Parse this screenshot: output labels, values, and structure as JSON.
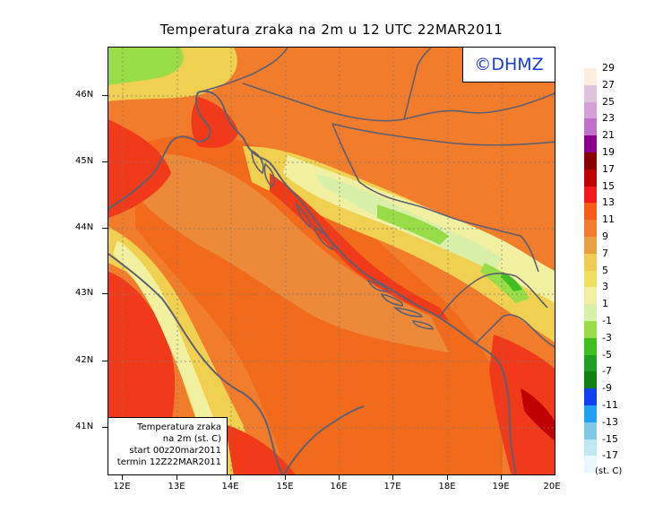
{
  "title": "Temperatura zraka na 2m u 12 UTC 22MAR2011",
  "logo_text": "©DHMZ",
  "info": {
    "line1": "Temperatura zraka",
    "line2": "na 2m (st. C)",
    "line3": "start 00z20mar2011",
    "line4": "termin 12Z22MAR2011"
  },
  "lat_labels": [
    "46N",
    "45N",
    "44N",
    "43N",
    "42N",
    "41N"
  ],
  "lon_labels": [
    "12E",
    "13E",
    "14E",
    "15E",
    "16E",
    "17E",
    "18E",
    "19E",
    "20E"
  ],
  "legend_labels": [
    "29",
    "27",
    "25",
    "23",
    "21",
    "19",
    "17",
    "15",
    "13",
    "11",
    "9",
    "7",
    "5",
    "3",
    "1",
    "-1",
    "-3",
    "-5",
    "-7",
    "-9",
    "-11",
    "-13",
    "-15",
    "-17"
  ],
  "legend_colors": [
    "#fdefe0",
    "#e0c4dc",
    "#d6a0d6",
    "#c070c8",
    "#8a008a",
    "#8a0000",
    "#c00000",
    "#f01818",
    "#f85a18",
    "#f07c2c",
    "#e8a040",
    "#f0cc50",
    "#f0e060",
    "#f0f0a0",
    "#d8f0a8",
    "#98dc48",
    "#40c020",
    "#20a020",
    "#108010",
    "#1040f0",
    "#20a0f0",
    "#80c8e8",
    "#c0e8f0",
    "#e8f8fc"
  ],
  "unit_label": "(st. C)"
}
